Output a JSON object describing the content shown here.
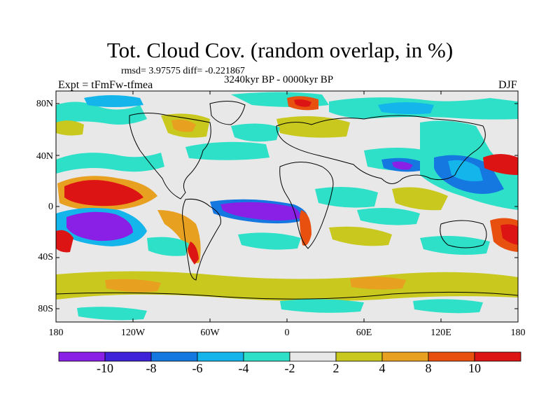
{
  "title": "Tot. Cloud Cov. (random overlap, in %)",
  "stats": "rmsd= 3.97575 diff= -0.221867",
  "period": "3240kyr BP - 0000kyr BP",
  "experiment": "Expt = tFmFw-tfmea",
  "season": "DJF",
  "lat_labels": [
    "80N",
    "40N",
    "0",
    "40S",
    "80S"
  ],
  "lon_labels": [
    "180",
    "120W",
    "60W",
    "0",
    "60E",
    "120E",
    "180"
  ],
  "colorbar": {
    "labels": [
      "-10",
      "-8",
      "-6",
      "-4",
      "-2",
      "2",
      "4",
      "8",
      "10"
    ],
    "colors": [
      "#8a1fe6",
      "#3d22d9",
      "#1577e0",
      "#13b5ea",
      "#2ee0c8",
      "#e8e8e8",
      "#c8c81e",
      "#e8a020",
      "#e85010",
      "#dc1414"
    ]
  }
}
